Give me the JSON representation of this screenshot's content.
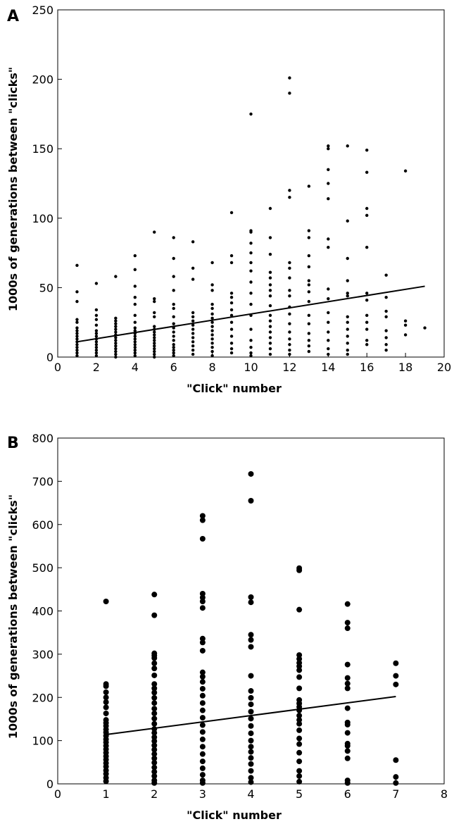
{
  "chart_data": [
    {
      "panel_label": "A",
      "type": "scatter",
      "xlabel": "\"Click\" number",
      "ylabel": "1000s of generations between \"clicks\"",
      "xlim": [
        0,
        20
      ],
      "ylim": [
        0,
        250
      ],
      "xticks": [
        0,
        2,
        4,
        6,
        8,
        10,
        12,
        14,
        16,
        18,
        20
      ],
      "yticks": [
        0,
        50,
        100,
        150,
        200,
        250
      ],
      "marker": "small-dot",
      "trendline": {
        "x": [
          1,
          19
        ],
        "y": [
          11,
          51
        ]
      },
      "columns": [
        {
          "x": 1,
          "y": [
            66,
            47,
            40,
            27,
            25,
            21,
            19,
            17,
            15,
            13,
            11,
            9,
            7,
            5,
            3,
            1
          ]
        },
        {
          "x": 2,
          "y": [
            53,
            34,
            30,
            27,
            23,
            19,
            17,
            15,
            13,
            11,
            9,
            7,
            5,
            3,
            1
          ]
        },
        {
          "x": 3,
          "y": [
            58,
            28,
            26,
            24,
            22,
            20,
            18,
            16,
            14,
            12,
            10,
            8,
            6,
            4,
            2,
            0
          ]
        },
        {
          "x": 4,
          "y": [
            73,
            63,
            51,
            43,
            38,
            30,
            25,
            21,
            19,
            17,
            15,
            13,
            11,
            9,
            7,
            5,
            3,
            1
          ]
        },
        {
          "x": 5,
          "y": [
            90,
            42,
            40,
            32,
            29,
            22,
            20,
            18,
            16,
            14,
            12,
            10,
            8,
            6,
            4,
            2,
            0
          ]
        },
        {
          "x": 6,
          "y": [
            86,
            71,
            58,
            48,
            38,
            35,
            29,
            24,
            21,
            18,
            15,
            12,
            9,
            7,
            5,
            3,
            1
          ]
        },
        {
          "x": 7,
          "y": [
            83,
            64,
            56,
            32,
            29,
            26,
            23,
            20,
            17,
            14,
            11,
            8,
            5,
            2
          ]
        },
        {
          "x": 8,
          "y": [
            68,
            52,
            48,
            38,
            35,
            31,
            28,
            25,
            22,
            19,
            16,
            13,
            10,
            7,
            4,
            1
          ]
        },
        {
          "x": 9,
          "y": [
            104,
            73,
            68,
            46,
            43,
            39,
            34,
            30,
            25,
            20,
            15,
            10,
            6,
            3
          ]
        },
        {
          "x": 10,
          "y": [
            175,
            91,
            90,
            82,
            75,
            68,
            62,
            54,
            46,
            38,
            30,
            20,
            12,
            7,
            3,
            1
          ]
        },
        {
          "x": 11,
          "y": [
            107,
            86,
            74,
            61,
            57,
            52,
            48,
            44,
            37,
            30,
            26,
            22,
            18,
            14,
            10,
            6,
            2
          ]
        },
        {
          "x": 12,
          "y": [
            201,
            190,
            120,
            115,
            68,
            64,
            57,
            48,
            44,
            36,
            31,
            24,
            18,
            13,
            9,
            5,
            2
          ]
        },
        {
          "x": 13,
          "y": [
            123,
            91,
            86,
            73,
            65,
            55,
            52,
            47,
            40,
            30,
            24,
            17,
            12,
            8,
            4
          ]
        },
        {
          "x": 14,
          "y": [
            152,
            150,
            135,
            125,
            114,
            85,
            79,
            49,
            42,
            32,
            25,
            18,
            12,
            6,
            2
          ]
        },
        {
          "x": 15,
          "y": [
            152,
            98,
            71,
            55,
            46,
            44,
            29,
            25,
            20,
            15,
            10,
            5,
            2
          ]
        },
        {
          "x": 16,
          "y": [
            149,
            133,
            107,
            102,
            79,
            46,
            41,
            30,
            25,
            20,
            12,
            9
          ]
        },
        {
          "x": 17,
          "y": [
            59,
            43,
            33,
            29,
            19,
            14,
            9,
            5
          ]
        },
        {
          "x": 18,
          "y": [
            134,
            26,
            23,
            16
          ]
        },
        {
          "x": 19,
          "y": [
            21
          ]
        }
      ]
    },
    {
      "panel_label": "B",
      "type": "scatter",
      "xlabel": "\"Click\" number",
      "ylabel": "1000s of generations between \"clicks\"",
      "xlim": [
        0,
        8
      ],
      "ylim": [
        0,
        800
      ],
      "xticks": [
        0,
        1,
        2,
        3,
        4,
        5,
        6,
        7,
        8
      ],
      "yticks": [
        0,
        100,
        200,
        300,
        400,
        500,
        600,
        700,
        800
      ],
      "marker": "large-dot",
      "trendline": {
        "x": [
          1,
          7
        ],
        "y": [
          114,
          202
        ]
      },
      "columns": [
        {
          "x": 1,
          "y": [
            422,
            231,
            226,
            212,
            200,
            189,
            177,
            163,
            148,
            141,
            134,
            126,
            119,
            111,
            103,
            96,
            88,
            80,
            72,
            64,
            56,
            48,
            40,
            31,
            23,
            14,
            6
          ]
        },
        {
          "x": 2,
          "y": [
            438,
            390,
            302,
            297,
            291,
            279,
            267,
            251,
            231,
            221,
            211,
            199,
            187,
            174,
            163,
            151,
            139,
            127,
            118,
            108,
            99,
            89,
            79,
            69,
            59,
            49,
            38,
            28,
            18,
            8,
            2
          ]
        },
        {
          "x": 3,
          "y": [
            620,
            610,
            567,
            440,
            431,
            422,
            407,
            336,
            327,
            308,
            258,
            248,
            236,
            220,
            204,
            187,
            170,
            153,
            136,
            120,
            103,
            86,
            69,
            52,
            36,
            21,
            8,
            2
          ]
        },
        {
          "x": 4,
          "y": [
            717,
            655,
            432,
            420,
            345,
            333,
            317,
            250,
            215,
            199,
            184,
            167,
            151,
            134,
            117,
            100,
            86,
            74,
            60,
            46,
            30,
            14,
            4
          ]
        },
        {
          "x": 5,
          "y": [
            499,
            494,
            403,
            298,
            289,
            280,
            272,
            263,
            247,
            221,
            194,
            186,
            178,
            170,
            158,
            148,
            139,
            124,
            105,
            92,
            72,
            52,
            30,
            18,
            5
          ]
        },
        {
          "x": 6,
          "y": [
            416,
            373,
            360,
            276,
            245,
            232,
            221,
            175,
            142,
            137,
            118,
            93,
            88,
            76,
            59,
            8,
            2
          ]
        },
        {
          "x": 7,
          "y": [
            279,
            250,
            230,
            55,
            16,
            2
          ]
        }
      ]
    }
  ]
}
